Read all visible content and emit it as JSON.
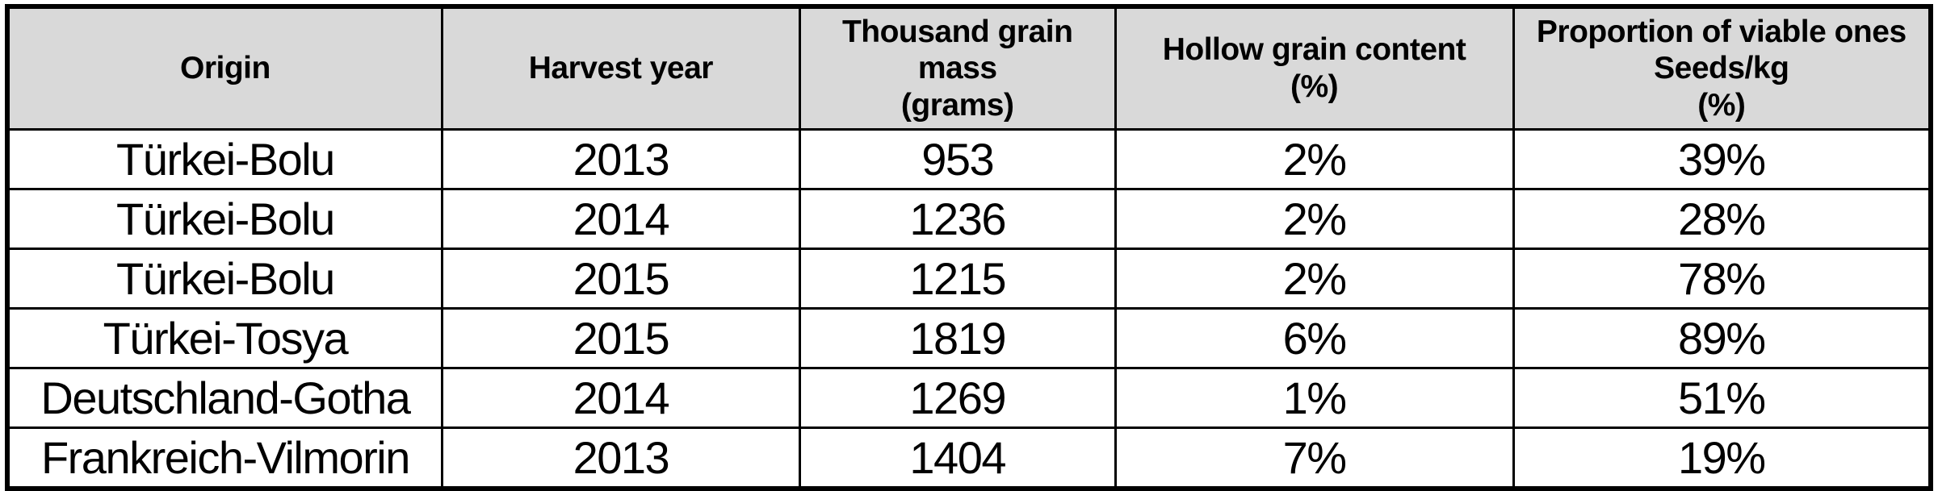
{
  "table": {
    "header": [
      {
        "id": "origin",
        "lines": [
          "Origin"
        ]
      },
      {
        "id": "harvest-year",
        "lines": [
          "Harvest year"
        ]
      },
      {
        "id": "thousand-grain-mass",
        "lines": [
          "Thousand grain mass",
          "(grams)"
        ]
      },
      {
        "id": "hollow-grain-content",
        "lines": [
          "Hollow grain content",
          "(%)"
        ]
      },
      {
        "id": "proportion-viable",
        "lines": [
          "Proportion of viable ones",
          "Seeds/kg",
          "(%)"
        ]
      }
    ],
    "rows": [
      [
        "Türkei-Bolu",
        "2013",
        "953",
        "2%",
        "39%"
      ],
      [
        "Türkei-Bolu",
        "2014",
        "1236",
        "2%",
        "28%"
      ],
      [
        "Türkei-Bolu",
        "2015",
        "1215",
        "2%",
        "78%"
      ],
      [
        "Türkei-Tosya",
        "2015",
        "1819",
        "6%",
        "89%"
      ],
      [
        "Deutschland-Gotha",
        "2014",
        "1269",
        "1%",
        "51%"
      ],
      [
        "Frankreich-Vilmorin",
        "2013",
        "1404",
        "7%",
        "19%"
      ]
    ],
    "colors": {
      "header_bg": "#d9d9d9",
      "border": "#000000",
      "body_bg": "#ffffff",
      "text": "#000000"
    }
  }
}
